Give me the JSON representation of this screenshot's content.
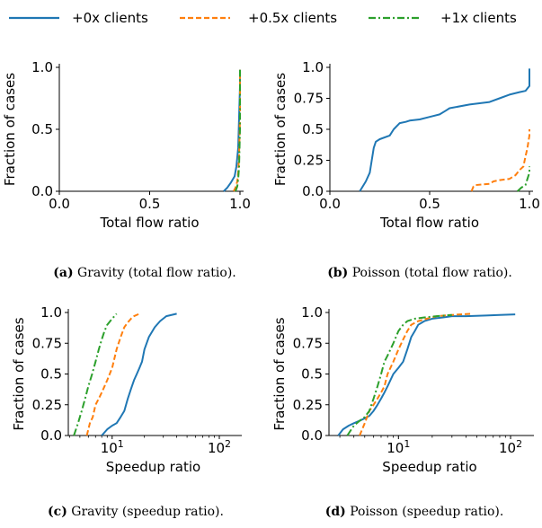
{
  "legend": [
    {
      "label": "+0x clients",
      "color": "#1f77b4",
      "dash": "solid"
    },
    {
      "label": "+0.5x clients",
      "color": "#ff7f0e",
      "dash": "dashed"
    },
    {
      "label": "+1x clients",
      "color": "#2ca02c",
      "dash": "dashdot"
    }
  ],
  "captions": [
    {
      "letter": "(a)",
      "text": "Gravity (total flow ratio)."
    },
    {
      "letter": "(b)",
      "text": "Poisson (total flow ratio)."
    },
    {
      "letter": "(c)",
      "text": "Gravity (speedup ratio)."
    },
    {
      "letter": "(d)",
      "text": "Poisson (speedup ratio)."
    }
  ],
  "chart_data": [
    {
      "type": "line",
      "xlabel": "Total flow ratio",
      "ylabel": "Fraction of cases",
      "xscale": "linear",
      "xlim": [
        0.0,
        1.0
      ],
      "ylim": [
        0.0,
        1.0
      ],
      "xticks": [
        {
          "v": 0.0,
          "label": "0.0"
        },
        {
          "v": 0.5,
          "label": "0.5"
        },
        {
          "v": 1.0,
          "label": "1.0"
        }
      ],
      "yticks": [
        {
          "v": 0.0,
          "label": "0.0"
        },
        {
          "v": 0.5,
          "label": "0.5"
        },
        {
          "v": 1.0,
          "label": "1.0"
        }
      ],
      "series": [
        {
          "name": "+0x clients",
          "color": "#1f77b4",
          "dash": "solid",
          "x": [
            0.91,
            0.93,
            0.95,
            0.97,
            0.98,
            0.99,
            0.995,
            1.0,
            1.0
          ],
          "y": [
            0.0,
            0.03,
            0.07,
            0.12,
            0.2,
            0.35,
            0.6,
            0.85,
            0.98
          ]
        },
        {
          "name": "+0.5x clients",
          "color": "#ff7f0e",
          "dash": "dashed",
          "x": [
            0.965,
            0.975,
            0.985,
            0.99,
            0.995,
            1.0,
            1.0
          ],
          "y": [
            0.0,
            0.03,
            0.08,
            0.15,
            0.3,
            0.6,
            0.98
          ]
        },
        {
          "name": "+1x clients",
          "color": "#2ca02c",
          "dash": "dashdot",
          "x": [
            0.975,
            0.985,
            0.99,
            0.995,
            1.0,
            1.0
          ],
          "y": [
            0.0,
            0.04,
            0.1,
            0.2,
            0.5,
            0.98
          ]
        }
      ]
    },
    {
      "type": "line",
      "xlabel": "Total flow ratio",
      "ylabel": "Fraction of cases",
      "xscale": "linear",
      "xlim": [
        0.0,
        1.0
      ],
      "ylim": [
        0.0,
        1.0
      ],
      "xticks": [
        {
          "v": 0.0,
          "label": "0.0"
        },
        {
          "v": 0.5,
          "label": "0.5"
        },
        {
          "v": 1.0,
          "label": "1.0"
        }
      ],
      "yticks": [
        {
          "v": 0.0,
          "label": "0.0"
        },
        {
          "v": 0.25,
          "label": "0.25"
        },
        {
          "v": 0.5,
          "label": "0.5"
        },
        {
          "v": 0.75,
          "label": "0.75"
        },
        {
          "v": 1.0,
          "label": "1.0"
        }
      ],
      "series": [
        {
          "name": "+0x clients",
          "color": "#1f77b4",
          "dash": "solid",
          "x": [
            0.15,
            0.18,
            0.2,
            0.21,
            0.22,
            0.23,
            0.25,
            0.3,
            0.32,
            0.35,
            0.38,
            0.4,
            0.45,
            0.5,
            0.55,
            0.58,
            0.6,
            0.7,
            0.75,
            0.8,
            0.85,
            0.9,
            0.95,
            0.98,
            1.0,
            1.0
          ],
          "y": [
            0.0,
            0.08,
            0.15,
            0.25,
            0.35,
            0.4,
            0.42,
            0.45,
            0.5,
            0.55,
            0.56,
            0.57,
            0.58,
            0.6,
            0.62,
            0.65,
            0.67,
            0.7,
            0.71,
            0.72,
            0.75,
            0.78,
            0.8,
            0.81,
            0.85,
            0.99
          ]
        },
        {
          "name": "+0.5x clients",
          "color": "#ff7f0e",
          "dash": "dashed",
          "x": [
            0.71,
            0.72,
            0.73,
            0.8,
            0.82,
            0.85,
            0.9,
            0.93,
            0.95,
            0.97,
            0.98,
            0.99,
            1.0,
            1.0
          ],
          "y": [
            0.0,
            0.04,
            0.05,
            0.06,
            0.08,
            0.09,
            0.1,
            0.13,
            0.17,
            0.2,
            0.28,
            0.35,
            0.45,
            0.5
          ]
        },
        {
          "name": "+1x clients",
          "color": "#2ca02c",
          "dash": "dashdot",
          "x": [
            0.94,
            0.96,
            0.98,
            0.99,
            1.0,
            1.0
          ],
          "y": [
            0.0,
            0.03,
            0.05,
            0.1,
            0.15,
            0.2
          ]
        }
      ]
    },
    {
      "type": "line",
      "xlabel": "Speedup ratio",
      "ylabel": "Fraction of cases",
      "xscale": "log",
      "xlim": [
        3.9,
        150
      ],
      "ylim": [
        0.0,
        1.0
      ],
      "xticks": [
        {
          "v": 10,
          "label": "10",
          "sup": "1"
        },
        {
          "v": 100,
          "label": "10",
          "sup": "2"
        }
      ],
      "yticks": [
        {
          "v": 0.0,
          "label": "0.0"
        },
        {
          "v": 0.25,
          "label": "0.25"
        },
        {
          "v": 0.5,
          "label": "0.5"
        },
        {
          "v": 0.75,
          "label": "0.75"
        },
        {
          "v": 1.0,
          "label": "1.0"
        }
      ],
      "series": [
        {
          "name": "+0x clients",
          "color": "#1f77b4",
          "dash": "solid",
          "x": [
            8,
            9,
            10,
            11,
            12,
            13,
            14,
            15,
            16,
            17,
            18,
            19,
            20,
            22,
            25,
            28,
            32,
            40
          ],
          "y": [
            0.0,
            0.05,
            0.08,
            0.1,
            0.15,
            0.2,
            0.3,
            0.38,
            0.45,
            0.5,
            0.55,
            0.6,
            0.7,
            0.8,
            0.88,
            0.93,
            0.97,
            0.99
          ]
        },
        {
          "name": "+0.5x clients",
          "color": "#ff7f0e",
          "dash": "dashed",
          "x": [
            5.8,
            6.2,
            6.6,
            7.0,
            7.5,
            8.0,
            8.5,
            9.0,
            10,
            11,
            12,
            13,
            14,
            15,
            16,
            18
          ],
          "y": [
            0.0,
            0.1,
            0.15,
            0.25,
            0.3,
            0.35,
            0.4,
            0.45,
            0.55,
            0.7,
            0.8,
            0.88,
            0.92,
            0.95,
            0.97,
            0.99
          ]
        },
        {
          "name": "+1x clients",
          "color": "#2ca02c",
          "dash": "dashdot",
          "x": [
            4.4,
            4.8,
            5.2,
            5.6,
            6.0,
            6.5,
            7.0,
            7.5,
            8.0,
            8.5,
            9.0,
            10,
            11
          ],
          "y": [
            0.0,
            0.1,
            0.2,
            0.3,
            0.4,
            0.5,
            0.6,
            0.7,
            0.78,
            0.85,
            0.9,
            0.95,
            0.99
          ]
        }
      ]
    },
    {
      "type": "line",
      "xlabel": "Speedup ratio",
      "ylabel": "Fraction of cases",
      "xscale": "log",
      "xlim": [
        2.4,
        150
      ],
      "ylim": [
        0.0,
        1.0
      ],
      "xticks": [
        {
          "v": 10,
          "label": "10",
          "sup": "1"
        },
        {
          "v": 100,
          "label": "10",
          "sup": "2"
        }
      ],
      "yticks": [
        {
          "v": 0.0,
          "label": "0.0"
        },
        {
          "v": 0.25,
          "label": "0.25"
        },
        {
          "v": 0.5,
          "label": "0.5"
        },
        {
          "v": 0.75,
          "label": "0.75"
        },
        {
          "v": 1.0,
          "label": "1.0"
        }
      ],
      "series": [
        {
          "name": "+0x clients",
          "color": "#1f77b4",
          "dash": "solid",
          "x": [
            2.9,
            3.2,
            3.6,
            4.0,
            4.5,
            5.0,
            5.5,
            6.0,
            6.5,
            7.0,
            7.5,
            8.0,
            9.0,
            10,
            11,
            12,
            13,
            14,
            15,
            17,
            20,
            25,
            30,
            40,
            60,
            80,
            110
          ],
          "y": [
            0.0,
            0.05,
            0.08,
            0.1,
            0.12,
            0.14,
            0.16,
            0.2,
            0.25,
            0.3,
            0.35,
            0.4,
            0.5,
            0.55,
            0.6,
            0.7,
            0.8,
            0.85,
            0.9,
            0.93,
            0.95,
            0.96,
            0.97,
            0.97,
            0.975,
            0.98,
            0.985
          ]
        },
        {
          "name": "+0.5x clients",
          "color": "#ff7f0e",
          "dash": "dashed",
          "x": [
            4.5,
            5.0,
            5.5,
            6.0,
            6.5,
            7.0,
            7.5,
            8.0,
            9.0,
            10,
            11,
            12,
            13,
            15,
            18,
            22,
            30,
            45
          ],
          "y": [
            0.0,
            0.1,
            0.2,
            0.25,
            0.3,
            0.35,
            0.4,
            0.5,
            0.6,
            0.7,
            0.78,
            0.85,
            0.9,
            0.93,
            0.95,
            0.97,
            0.98,
            0.99
          ]
        },
        {
          "name": "+1x clients",
          "color": "#2ca02c",
          "dash": "dashdot",
          "x": [
            3.5,
            4.0,
            4.5,
            5.0,
            5.5,
            6.0,
            6.5,
            7.0,
            7.5,
            8.0,
            9.0,
            10,
            11,
            12,
            14,
            17,
            22,
            30
          ],
          "y": [
            0.0,
            0.08,
            0.12,
            0.15,
            0.2,
            0.3,
            0.4,
            0.5,
            0.6,
            0.65,
            0.75,
            0.85,
            0.9,
            0.93,
            0.95,
            0.96,
            0.97,
            0.98
          ]
        }
      ]
    }
  ]
}
